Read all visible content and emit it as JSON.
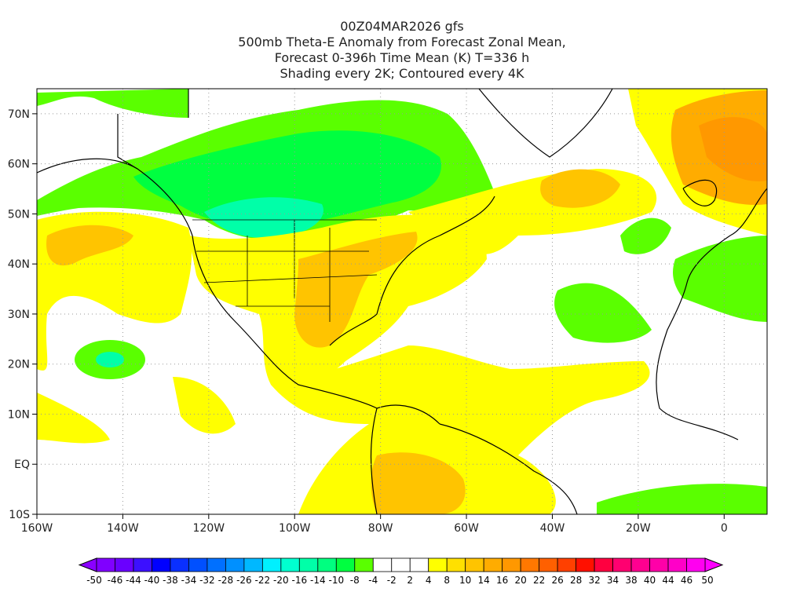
{
  "title_lines": [
    "00Z04MAR2026 gfs",
    "500mb Theta-E Anomaly from Forecast Zonal Mean,",
    "Forecast 0-396h Time Mean (K) T=336 h",
    "Shading every 2K; Contoured every 4K"
  ],
  "map": {
    "lon_range": [
      -160,
      10
    ],
    "lat_range": [
      -10,
      75
    ],
    "x_ticks": [
      {
        "lon": -160,
        "label": "160W"
      },
      {
        "lon": -140,
        "label": "140W"
      },
      {
        "lon": -120,
        "label": "120W"
      },
      {
        "lon": -100,
        "label": "100W"
      },
      {
        "lon": -80,
        "label": "80W"
      },
      {
        "lon": -60,
        "label": "60W"
      },
      {
        "lon": -40,
        "label": "40W"
      },
      {
        "lon": -20,
        "label": "20W"
      },
      {
        "lon": 0,
        "label": "0"
      }
    ],
    "y_ticks": [
      {
        "lat": 70,
        "label": "70N"
      },
      {
        "lat": 60,
        "label": "60N"
      },
      {
        "lat": 50,
        "label": "50N"
      },
      {
        "lat": 40,
        "label": "40N"
      },
      {
        "lat": 30,
        "label": "30N"
      },
      {
        "lat": 20,
        "label": "20N"
      },
      {
        "lat": 10,
        "label": "10N"
      },
      {
        "lat": 0,
        "label": "EQ"
      },
      {
        "lat": -10,
        "label": "10S"
      }
    ]
  },
  "colorbar": {
    "labels": [
      "-50",
      "-46",
      "-44",
      "-40",
      "-38",
      "-34",
      "-32",
      "-28",
      "-26",
      "-22",
      "-20",
      "-16",
      "-14",
      "-10",
      "-8",
      "-4",
      "-2",
      "2",
      "4",
      "8",
      "10",
      "14",
      "16",
      "20",
      "22",
      "26",
      "28",
      "32",
      "34",
      "38",
      "40",
      "44",
      "46",
      "50"
    ],
    "colors": [
      "#8000ff",
      "#6a00ff",
      "#3c10ff",
      "#0000ff",
      "#0a30ff",
      "#0050ff",
      "#0070ff",
      "#0090ff",
      "#00b8ff",
      "#00f0ff",
      "#00ffd0",
      "#00ffa8",
      "#00ff80",
      "#00ff40",
      "#5aff00",
      "#ffffff",
      "#ffffff",
      "#ffffff",
      "#ffff00",
      "#ffe000",
      "#ffc400",
      "#ffac00",
      "#ff9800",
      "#ff7800",
      "#ff6000",
      "#ff4000",
      "#ff1000",
      "#ff0040",
      "#ff0070",
      "#ff0090",
      "#ff00a8",
      "#ff00c8",
      "#ff00f0"
    ],
    "left_arrow_color": "#8a00ff",
    "right_arrow_color": "#ff00ff"
  }
}
